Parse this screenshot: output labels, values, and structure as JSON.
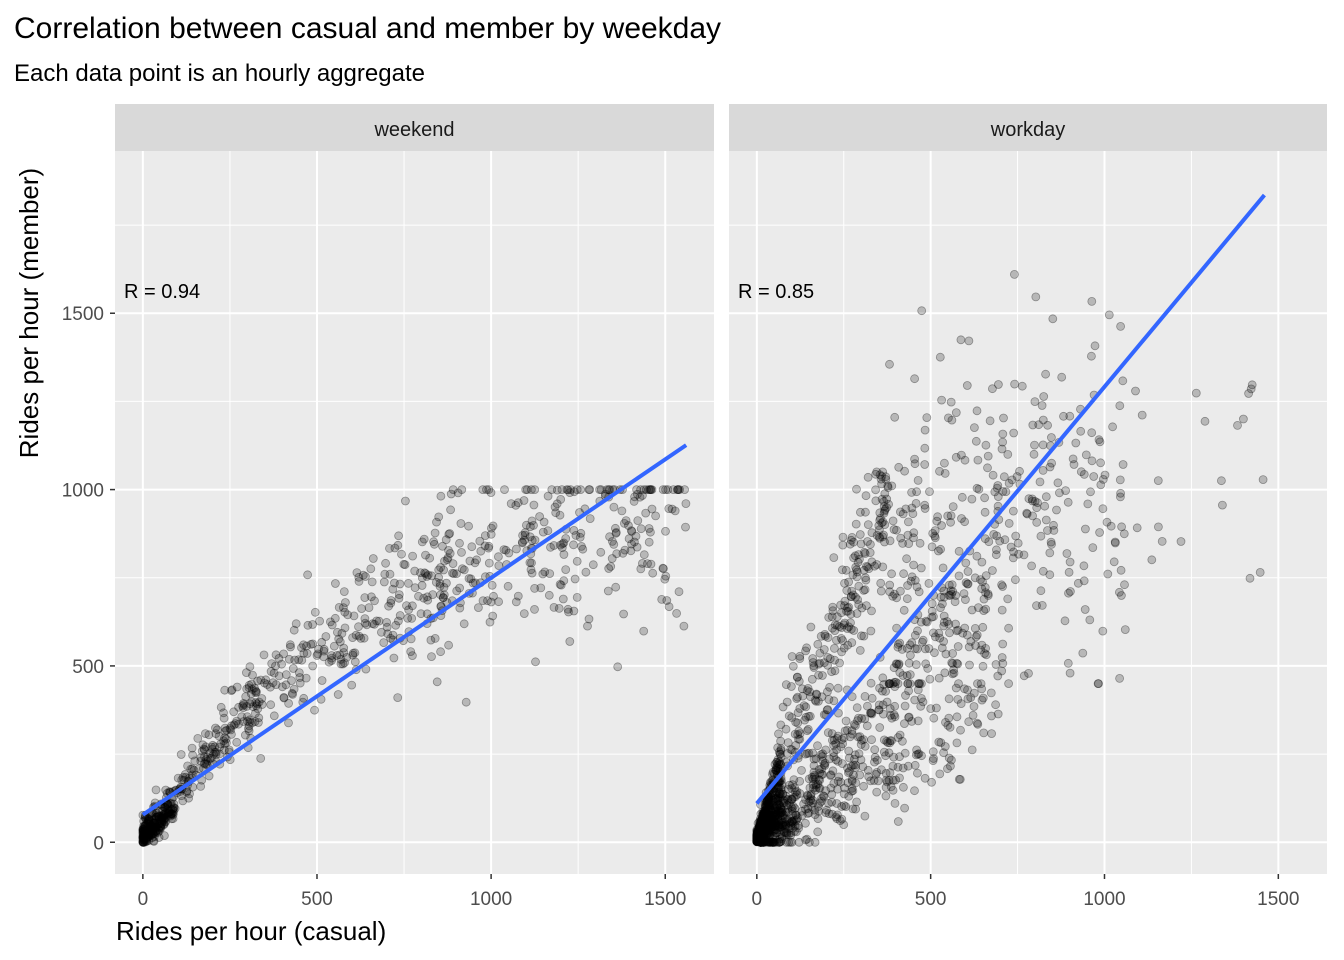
{
  "chart_data": {
    "type": "scatter",
    "title": "Correlation between casual and member by weekday",
    "subtitle": "Each data point is an hourly aggregate",
    "xlabel": "Rides per hour (casual)",
    "ylabel": "Rides per hour (member)",
    "xlim": [
      -80,
      1640
    ],
    "ylim": [
      -90,
      1960
    ],
    "x_ticks": [
      0,
      500,
      1000,
      1500
    ],
    "y_ticks": [
      0,
      500,
      1000,
      1500
    ],
    "grid": true,
    "point_color": "#000000",
    "point_alpha": 0.22,
    "trend_color": "#3366FF",
    "panels": [
      {
        "strip_label": "weekend",
        "annotation": "R =  0.94",
        "trend_line": {
          "x": [
            0,
            1560
          ],
          "y": [
            78,
            1126
          ]
        },
        "point_cloud_summary": {
          "x_range": [
            0,
            1560
          ],
          "y_range": [
            0,
            1000
          ],
          "approx_points": 900
        }
      },
      {
        "strip_label": "workday",
        "annotation": "R =  0.85",
        "trend_line": {
          "x": [
            0,
            1460
          ],
          "y": [
            110,
            1835
          ]
        },
        "point_cloud_summary": {
          "x_range": [
            0,
            1460
          ],
          "y_range": [
            0,
            1610
          ],
          "approx_points": 1800
        }
      }
    ]
  }
}
